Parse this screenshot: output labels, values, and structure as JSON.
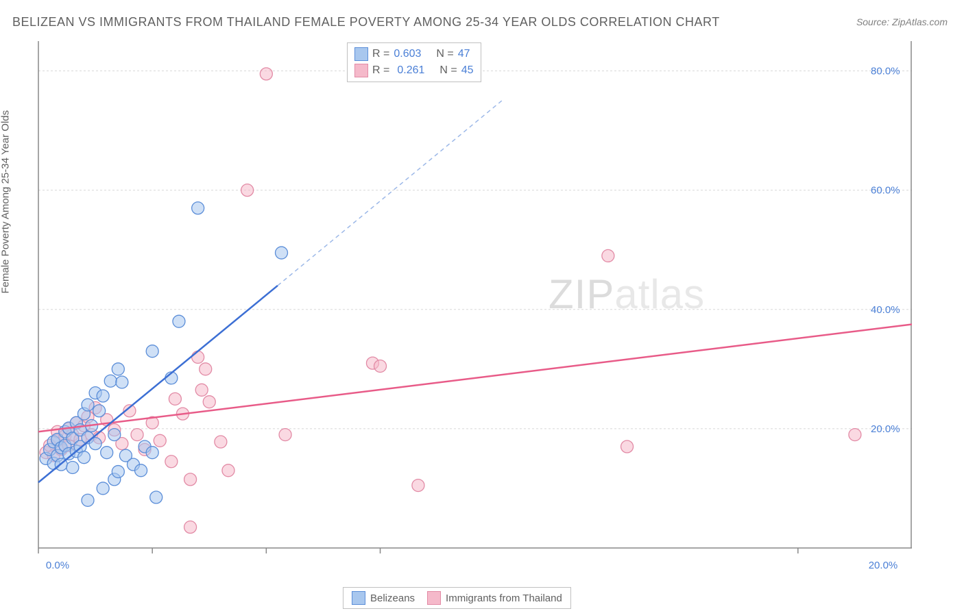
{
  "title": "BELIZEAN VS IMMIGRANTS FROM THAILAND FEMALE POVERTY AMONG 25-34 YEAR OLDS CORRELATION CHART",
  "source": "Source: ZipAtlas.com",
  "y_axis_label": "Female Poverty Among 25-34 Year Olds",
  "watermark_a": "ZIP",
  "watermark_b": "atlas",
  "chart": {
    "type": "scatter",
    "background_color": "#ffffff",
    "grid_color": "#d8d8d8",
    "axis_color": "#888888",
    "xlim": [
      0,
      23
    ],
    "ylim": [
      0,
      85
    ],
    "y_ticks": [
      20,
      40,
      60,
      80
    ],
    "y_tick_labels": [
      "20.0%",
      "40.0%",
      "60.0%",
      "80.0%"
    ],
    "x_ticks": [
      0,
      3,
      6,
      9,
      20
    ],
    "x_first_label": "0.0%",
    "x_last_label": "20.0%",
    "tick_label_color": "#4a7fd6",
    "tick_label_fontsize": 15,
    "marker_radius": 9
  },
  "series": [
    {
      "name": "Belizeans",
      "color_fill": "#a8c7ee",
      "color_stroke": "#5a8dd8",
      "reg_color": "#3c6fd4",
      "reg_dash_color": "#9cb8e8",
      "R": "0.603",
      "N": "47",
      "reg_line": {
        "x1": 0,
        "y1": 11,
        "x2": 6.3,
        "y2": 44,
        "x2_dash": 12.2,
        "y2_dash": 75
      },
      "points": [
        [
          0.2,
          15
        ],
        [
          0.3,
          16.5
        ],
        [
          0.4,
          14.2
        ],
        [
          0.4,
          17.8
        ],
        [
          0.5,
          15.5
        ],
        [
          0.5,
          18.2
        ],
        [
          0.6,
          16.8
        ],
        [
          0.6,
          14.0
        ],
        [
          0.7,
          19.5
        ],
        [
          0.7,
          17.2
        ],
        [
          0.8,
          15.8
        ],
        [
          0.8,
          20.1
        ],
        [
          0.9,
          18.4
        ],
        [
          0.9,
          13.5
        ],
        [
          1.0,
          16.2
        ],
        [
          1.0,
          21.0
        ],
        [
          1.1,
          19.8
        ],
        [
          1.1,
          17.0
        ],
        [
          1.2,
          22.5
        ],
        [
          1.2,
          15.2
        ],
        [
          1.3,
          24.0
        ],
        [
          1.3,
          18.5
        ],
        [
          1.4,
          20.5
        ],
        [
          1.5,
          26.0
        ],
        [
          1.5,
          17.5
        ],
        [
          1.6,
          23.0
        ],
        [
          1.7,
          25.5
        ],
        [
          1.8,
          16.0
        ],
        [
          1.9,
          28.0
        ],
        [
          2.0,
          19.0
        ],
        [
          2.1,
          30.0
        ],
        [
          2.2,
          27.8
        ],
        [
          2.3,
          15.5
        ],
        [
          2.5,
          14.0
        ],
        [
          2.7,
          13.0
        ],
        [
          2.8,
          17.0
        ],
        [
          3.0,
          33.0
        ],
        [
          3.1,
          8.5
        ],
        [
          1.3,
          8.0
        ],
        [
          1.7,
          10.0
        ],
        [
          2.0,
          11.5
        ],
        [
          2.1,
          12.8
        ],
        [
          3.5,
          28.5
        ],
        [
          3.7,
          38.0
        ],
        [
          4.2,
          57.0
        ],
        [
          6.4,
          49.5
        ],
        [
          3.0,
          16.0
        ]
      ]
    },
    {
      "name": "Immigrants from Thailand",
      "color_fill": "#f5b9ca",
      "color_stroke": "#e28aa5",
      "reg_color": "#e85b88",
      "R": "0.261",
      "N": "45",
      "reg_line": {
        "x1": 0,
        "y1": 19.5,
        "x2": 23,
        "y2": 37.5
      },
      "points": [
        [
          0.2,
          16.0
        ],
        [
          0.3,
          17.2
        ],
        [
          0.4,
          15.5
        ],
        [
          0.5,
          18.0
        ],
        [
          0.5,
          19.5
        ],
        [
          0.6,
          16.5
        ],
        [
          0.7,
          18.8
        ],
        [
          0.8,
          20.0
        ],
        [
          0.8,
          17.2
        ],
        [
          0.9,
          19.0
        ],
        [
          1.0,
          21.0
        ],
        [
          1.1,
          18.2
        ],
        [
          1.2,
          20.5
        ],
        [
          1.3,
          22.0
        ],
        [
          1.4,
          19.0
        ],
        [
          1.5,
          23.5
        ],
        [
          1.6,
          18.5
        ],
        [
          1.8,
          21.5
        ],
        [
          2.0,
          19.8
        ],
        [
          2.2,
          17.5
        ],
        [
          2.4,
          23.0
        ],
        [
          2.6,
          19.0
        ],
        [
          2.8,
          16.5
        ],
        [
          3.0,
          21.0
        ],
        [
          3.2,
          18.0
        ],
        [
          3.5,
          14.5
        ],
        [
          3.6,
          25.0
        ],
        [
          3.8,
          22.5
        ],
        [
          4.0,
          11.5
        ],
        [
          4.2,
          32.0
        ],
        [
          4.3,
          26.5
        ],
        [
          4.4,
          30.0
        ],
        [
          4.5,
          24.5
        ],
        [
          4.8,
          17.8
        ],
        [
          5.0,
          13.0
        ],
        [
          5.5,
          60.0
        ],
        [
          6.0,
          79.5
        ],
        [
          6.5,
          19.0
        ],
        [
          8.8,
          31.0
        ],
        [
          9.0,
          30.5
        ],
        [
          10.0,
          10.5
        ],
        [
          15.0,
          49.0
        ],
        [
          15.5,
          17.0
        ],
        [
          21.5,
          19.0
        ],
        [
          4.0,
          3.5
        ]
      ]
    }
  ],
  "legend_top": {
    "r_label": "R =",
    "n_label": "N ="
  },
  "legend_bottom": {
    "series1": "Belizeans",
    "series2": "Immigrants from Thailand"
  }
}
